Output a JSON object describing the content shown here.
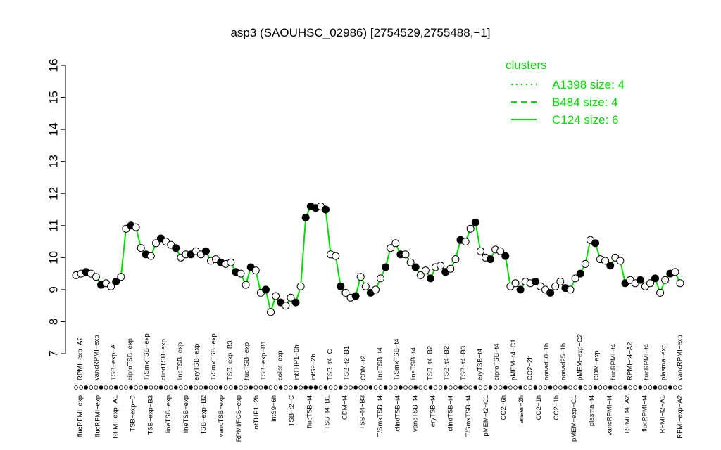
{
  "chart_data": {
    "type": "line",
    "title": "asp3 (SAOUHSC_02986) [2754529,2755488,−1]",
    "xlabel": "",
    "ylabel": "",
    "ylim": [
      7,
      16
    ],
    "yticks": [
      7,
      8,
      9,
      10,
      11,
      12,
      13,
      14,
      15,
      16
    ],
    "grid": false,
    "legend": {
      "title": "clusters",
      "position": "top-right",
      "color": "#00dd00",
      "entries": [
        {
          "label": "A1398 size: 4",
          "style": "dotted"
        },
        {
          "label": "B484 size: 4",
          "style": "dashed"
        },
        {
          "label": "C124 size: 6",
          "style": "solid"
        }
      ]
    },
    "colors": {
      "line": "#00dd00",
      "point_fill_open": "#ffffff",
      "point_fill_filled": "#000000",
      "point_stroke": "#000000"
    },
    "x_tick_labels_upper": [
      "RPMI−exp−A2",
      "vancRPMI−exp",
      "TSB−exp−A",
      "ciproTSB−exp",
      "T/SmxTSB−exp",
      "clindTSB−exp",
      "lineTSB−exp",
      "eryTSB−exp",
      "T/SmxTSB−exp",
      "TSB−exp−B3",
      "flucTSB−exp",
      "TSB−exp−B1",
      "colist−exp",
      "intTHP1−6h",
      "intS9−2h",
      "TSB−t4−C",
      "TSB−t2−B1",
      "CDM−t2",
      "lineTSB−t4",
      "T/SmxTSB−t4",
      "lineTSB−t4",
      "TSB−t4−B2",
      "TSB−t4−B2",
      "TSB−t4−B3",
      "eryTSB−t4",
      "ciproTSB−t4",
      "pMEM−t4−C1",
      "CO2−2h",
      "nonad50−1h",
      "nonad25−1h",
      "pMEM−exp−C2",
      "CDM−exp",
      "flucRPMI−t4",
      "RPMI−t4−A2",
      "flucRPMI−t4",
      "plasma−exp",
      "vancRPMI−exp"
    ],
    "x_tick_labels_lower": [
      "flucRPMI−exp",
      "flucRPMI−exp",
      "RPMI−exp−A1",
      "TSB−exp−C",
      "TSB−exp−B3",
      "lineTSB−exp",
      "lineTSB−exp",
      "TSB−exp−B2",
      "vancTSB−exp",
      "RPMI/FCS−exp",
      "intTHP1−2h",
      "intS9−6h",
      "TSB−t2−C",
      "flucTSB−t4",
      "TSB−t4−B1",
      "CDM−t4",
      "TSB−t4−B3",
      "T/SmxTSB−t4",
      "clindTSB−t4",
      "vancTSB−t4",
      "eryTSB−t4",
      "clindTSB−t4",
      "T/SmxTSB−t4",
      "pMEM−t2−C1",
      "CO2−6h",
      "anaer−2h",
      "CO2−1h",
      "CO2−1h",
      "pMEM−exp−C1",
      "plasma−t4",
      "vancRPMI−t4",
      "RPMI−t4−A2",
      "flucRPMI−t4",
      "RPMI−t2−A1",
      "RPMI−exp−A2"
    ],
    "series": [
      {
        "values": [
          9.45,
          9.5,
          9.55,
          9.5,
          9.4,
          9.15,
          9.2,
          9.1,
          9.25,
          9.4,
          10.9,
          11.0,
          10.95,
          10.3,
          10.1,
          10.05,
          10.45,
          10.6,
          10.5,
          10.4,
          10.3,
          10.0,
          10.1,
          10.1,
          10.2,
          10.1,
          10.2,
          9.9,
          9.95,
          9.85,
          9.8,
          9.85,
          9.55,
          9.5,
          9.15,
          9.7,
          9.6,
          8.9,
          9.0,
          8.3,
          8.8,
          8.6,
          8.5,
          8.75,
          8.6,
          9.1,
          11.25,
          11.6,
          11.55,
          11.6,
          11.5,
          10.1,
          10.05,
          9.1,
          8.9,
          8.75,
          8.8,
          9.4,
          9.1,
          8.9,
          9.0,
          9.35,
          9.7,
          10.3,
          10.45,
          10.1,
          10.1,
          9.85,
          9.7,
          9.45,
          9.6,
          9.35,
          9.7,
          9.75,
          9.55,
          9.65,
          9.95,
          10.55,
          10.5,
          10.9,
          11.1,
          10.2,
          10.0,
          9.95,
          10.25,
          10.2,
          10.05,
          9.1,
          9.2,
          9.0,
          9.25,
          9.2,
          9.25,
          9.1,
          9.0,
          8.9,
          9.1,
          9.25,
          9.05,
          9.0,
          9.35,
          9.5,
          9.8,
          10.55,
          10.45,
          9.95,
          9.9,
          9.75,
          10.0,
          9.9,
          9.2,
          9.3,
          9.2,
          9.3,
          9.1,
          9.2,
          9.35,
          8.9,
          9.3,
          9.5,
          9.55,
          9.2
        ]
      }
    ]
  }
}
